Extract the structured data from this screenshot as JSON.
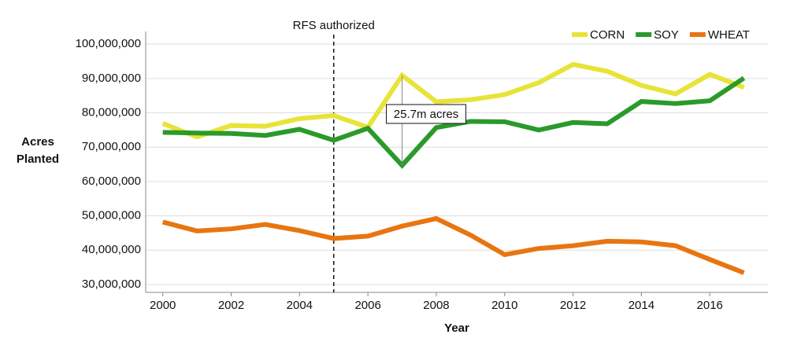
{
  "chart_data": {
    "type": "line",
    "x_label": "Year",
    "y_label": "Acres Planted",
    "x": [
      2000,
      2001,
      2002,
      2003,
      2004,
      2005,
      2006,
      2007,
      2008,
      2009,
      2010,
      2011,
      2012,
      2013,
      2014,
      2015,
      2016,
      2017
    ],
    "series": [
      {
        "name": "CORN",
        "color": "#e8e337",
        "values": [
          76900000,
          73000000,
          76300000,
          76100000,
          78300000,
          79200000,
          75800000,
          90900000,
          83200000,
          83800000,
          85300000,
          88800000,
          94100000,
          92100000,
          88000000,
          85500000,
          91200000,
          87400000
        ]
      },
      {
        "name": "SOY",
        "color": "#2a9a2a",
        "values": [
          74300000,
          74100000,
          74000000,
          73400000,
          75200000,
          72000000,
          75500000,
          64700000,
          75700000,
          77500000,
          77400000,
          75000000,
          77200000,
          76800000,
          83300000,
          82700000,
          83500000,
          90100000
        ]
      },
      {
        "name": "WHEAT",
        "color": "#e87510",
        "values": [
          48200000,
          45600000,
          46200000,
          47500000,
          45700000,
          43400000,
          44100000,
          47000000,
          49200000,
          44400000,
          38700000,
          40500000,
          41300000,
          42600000,
          42400000,
          41300000,
          37300000,
          33400000
        ]
      }
    ],
    "xlim": [
      1999.5,
      2017.7
    ],
    "ylim": [
      27700000,
      103700000
    ],
    "xticks": [
      2000,
      2002,
      2004,
      2006,
      2008,
      2010,
      2012,
      2014,
      2016
    ],
    "yticks": [
      {
        "value": 30000000,
        "label": "30,000,000"
      },
      {
        "value": 40000000,
        "label": "40,000,000"
      },
      {
        "value": 50000000,
        "label": "50,000,000"
      },
      {
        "value": 60000000,
        "label": "60,000,000"
      },
      {
        "value": 70000000,
        "label": "70,000,000"
      },
      {
        "value": 80000000,
        "label": "80,000,000"
      },
      {
        "value": 90000000,
        "label": "90,000,000"
      },
      {
        "value": 100000000,
        "label": "100,000,000"
      }
    ],
    "grid": true,
    "legend": "top-right",
    "annotations": [
      {
        "text": "RFS authorized",
        "x": 2005
      },
      {
        "text": "25.7m acres",
        "x": 2007
      }
    ]
  }
}
